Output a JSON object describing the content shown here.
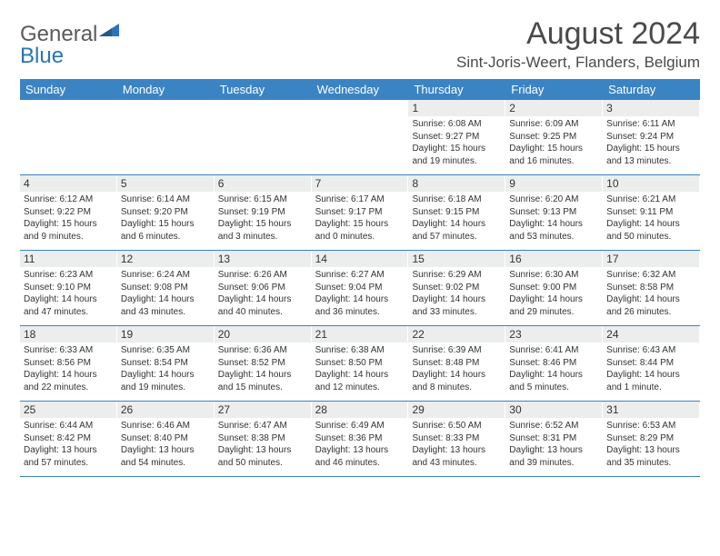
{
  "logo": {
    "text1": "General",
    "text2": "Blue"
  },
  "title": "August 2024",
  "location": "Sint-Joris-Weert, Flanders, Belgium",
  "colors": {
    "header_bg": "#3b84c4",
    "header_text": "#ffffff",
    "daynum_bg": "#eceded",
    "border": "#3b84c4",
    "body_text": "#333333",
    "title_text": "#4a4a4a",
    "logo_gray": "#5a5a5a",
    "logo_blue": "#2a74b8"
  },
  "day_names": [
    "Sunday",
    "Monday",
    "Tuesday",
    "Wednesday",
    "Thursday",
    "Friday",
    "Saturday"
  ],
  "weeks": [
    [
      {
        "blank": true
      },
      {
        "blank": true
      },
      {
        "blank": true
      },
      {
        "blank": true
      },
      {
        "d": "1",
        "sunrise": "6:08 AM",
        "sunset": "9:27 PM",
        "dl1": "Daylight: 15 hours",
        "dl2": "and 19 minutes."
      },
      {
        "d": "2",
        "sunrise": "6:09 AM",
        "sunset": "9:25 PM",
        "dl1": "Daylight: 15 hours",
        "dl2": "and 16 minutes."
      },
      {
        "d": "3",
        "sunrise": "6:11 AM",
        "sunset": "9:24 PM",
        "dl1": "Daylight: 15 hours",
        "dl2": "and 13 minutes."
      }
    ],
    [
      {
        "d": "4",
        "sunrise": "6:12 AM",
        "sunset": "9:22 PM",
        "dl1": "Daylight: 15 hours",
        "dl2": "and 9 minutes."
      },
      {
        "d": "5",
        "sunrise": "6:14 AM",
        "sunset": "9:20 PM",
        "dl1": "Daylight: 15 hours",
        "dl2": "and 6 minutes."
      },
      {
        "d": "6",
        "sunrise": "6:15 AM",
        "sunset": "9:19 PM",
        "dl1": "Daylight: 15 hours",
        "dl2": "and 3 minutes."
      },
      {
        "d": "7",
        "sunrise": "6:17 AM",
        "sunset": "9:17 PM",
        "dl1": "Daylight: 15 hours",
        "dl2": "and 0 minutes."
      },
      {
        "d": "8",
        "sunrise": "6:18 AM",
        "sunset": "9:15 PM",
        "dl1": "Daylight: 14 hours",
        "dl2": "and 57 minutes."
      },
      {
        "d": "9",
        "sunrise": "6:20 AM",
        "sunset": "9:13 PM",
        "dl1": "Daylight: 14 hours",
        "dl2": "and 53 minutes."
      },
      {
        "d": "10",
        "sunrise": "6:21 AM",
        "sunset": "9:11 PM",
        "dl1": "Daylight: 14 hours",
        "dl2": "and 50 minutes."
      }
    ],
    [
      {
        "d": "11",
        "sunrise": "6:23 AM",
        "sunset": "9:10 PM",
        "dl1": "Daylight: 14 hours",
        "dl2": "and 47 minutes."
      },
      {
        "d": "12",
        "sunrise": "6:24 AM",
        "sunset": "9:08 PM",
        "dl1": "Daylight: 14 hours",
        "dl2": "and 43 minutes."
      },
      {
        "d": "13",
        "sunrise": "6:26 AM",
        "sunset": "9:06 PM",
        "dl1": "Daylight: 14 hours",
        "dl2": "and 40 minutes."
      },
      {
        "d": "14",
        "sunrise": "6:27 AM",
        "sunset": "9:04 PM",
        "dl1": "Daylight: 14 hours",
        "dl2": "and 36 minutes."
      },
      {
        "d": "15",
        "sunrise": "6:29 AM",
        "sunset": "9:02 PM",
        "dl1": "Daylight: 14 hours",
        "dl2": "and 33 minutes."
      },
      {
        "d": "16",
        "sunrise": "6:30 AM",
        "sunset": "9:00 PM",
        "dl1": "Daylight: 14 hours",
        "dl2": "and 29 minutes."
      },
      {
        "d": "17",
        "sunrise": "6:32 AM",
        "sunset": "8:58 PM",
        "dl1": "Daylight: 14 hours",
        "dl2": "and 26 minutes."
      }
    ],
    [
      {
        "d": "18",
        "sunrise": "6:33 AM",
        "sunset": "8:56 PM",
        "dl1": "Daylight: 14 hours",
        "dl2": "and 22 minutes."
      },
      {
        "d": "19",
        "sunrise": "6:35 AM",
        "sunset": "8:54 PM",
        "dl1": "Daylight: 14 hours",
        "dl2": "and 19 minutes."
      },
      {
        "d": "20",
        "sunrise": "6:36 AM",
        "sunset": "8:52 PM",
        "dl1": "Daylight: 14 hours",
        "dl2": "and 15 minutes."
      },
      {
        "d": "21",
        "sunrise": "6:38 AM",
        "sunset": "8:50 PM",
        "dl1": "Daylight: 14 hours",
        "dl2": "and 12 minutes."
      },
      {
        "d": "22",
        "sunrise": "6:39 AM",
        "sunset": "8:48 PM",
        "dl1": "Daylight: 14 hours",
        "dl2": "and 8 minutes."
      },
      {
        "d": "23",
        "sunrise": "6:41 AM",
        "sunset": "8:46 PM",
        "dl1": "Daylight: 14 hours",
        "dl2": "and 5 minutes."
      },
      {
        "d": "24",
        "sunrise": "6:43 AM",
        "sunset": "8:44 PM",
        "dl1": "Daylight: 14 hours",
        "dl2": "and 1 minute."
      }
    ],
    [
      {
        "d": "25",
        "sunrise": "6:44 AM",
        "sunset": "8:42 PM",
        "dl1": "Daylight: 13 hours",
        "dl2": "and 57 minutes."
      },
      {
        "d": "26",
        "sunrise": "6:46 AM",
        "sunset": "8:40 PM",
        "dl1": "Daylight: 13 hours",
        "dl2": "and 54 minutes."
      },
      {
        "d": "27",
        "sunrise": "6:47 AM",
        "sunset": "8:38 PM",
        "dl1": "Daylight: 13 hours",
        "dl2": "and 50 minutes."
      },
      {
        "d": "28",
        "sunrise": "6:49 AM",
        "sunset": "8:36 PM",
        "dl1": "Daylight: 13 hours",
        "dl2": "and 46 minutes."
      },
      {
        "d": "29",
        "sunrise": "6:50 AM",
        "sunset": "8:33 PM",
        "dl1": "Daylight: 13 hours",
        "dl2": "and 43 minutes."
      },
      {
        "d": "30",
        "sunrise": "6:52 AM",
        "sunset": "8:31 PM",
        "dl1": "Daylight: 13 hours",
        "dl2": "and 39 minutes."
      },
      {
        "d": "31",
        "sunrise": "6:53 AM",
        "sunset": "8:29 PM",
        "dl1": "Daylight: 13 hours",
        "dl2": "and 35 minutes."
      }
    ]
  ],
  "labels": {
    "sunrise_prefix": "Sunrise: ",
    "sunset_prefix": "Sunset: "
  }
}
